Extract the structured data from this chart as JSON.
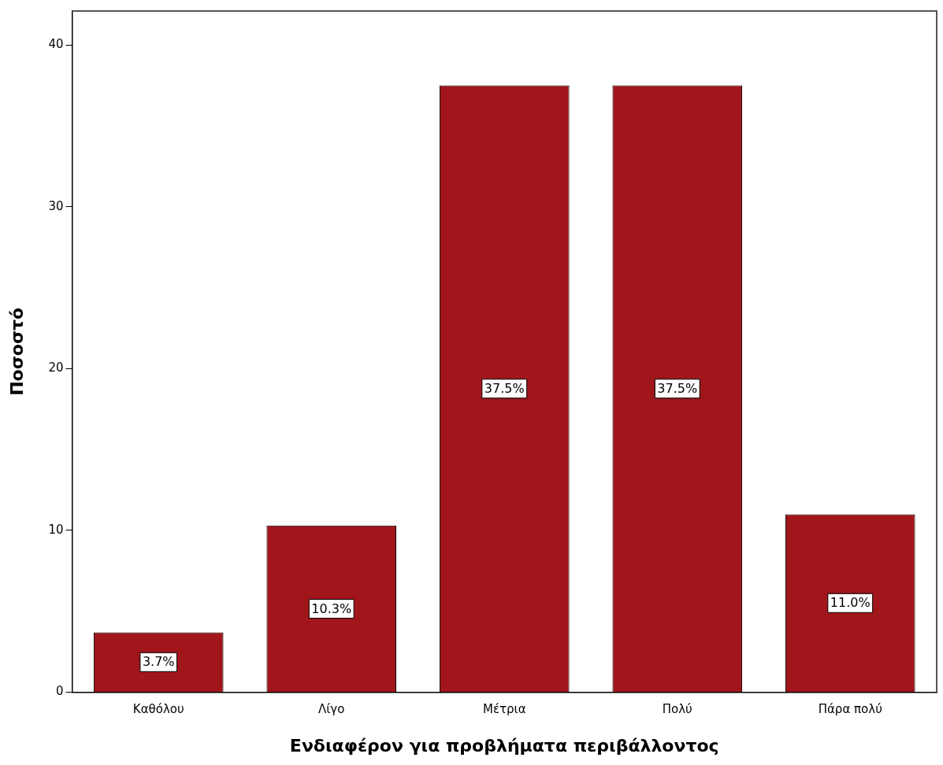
{
  "chart_data": {
    "type": "bar",
    "xlabel": "Ενδιαφέρον για προβλήματα περιβάλλοντος",
    "ylabel": "Ποσοστό",
    "categories": [
      "Καθόλου",
      "Λίγο",
      "Μέτρια",
      "Πολύ",
      "Πάρα πολύ"
    ],
    "values": [
      3.7,
      10.3,
      37.5,
      37.5,
      11.0
    ],
    "value_labels": [
      "3.7%",
      "10.3%",
      "37.5%",
      "37.5%",
      "11.0%"
    ],
    "color": "#a0161b",
    "ylim": [
      0,
      42.1
    ],
    "yticks": [
      0,
      10,
      20,
      30,
      40
    ],
    "grid": false,
    "legend": false
  }
}
